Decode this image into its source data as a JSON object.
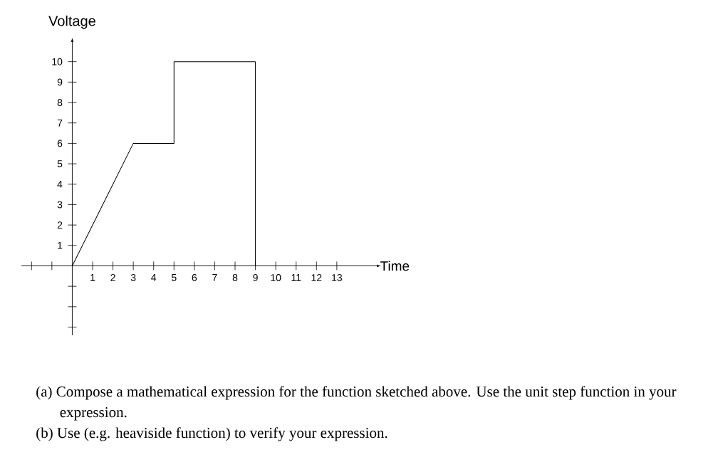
{
  "chart_data": {
    "type": "line",
    "xlabel": "Time",
    "ylabel": "Voltage",
    "x": [
      0,
      3,
      5,
      5,
      9,
      9
    ],
    "values": [
      0,
      6,
      6,
      10,
      10,
      0
    ],
    "color": "#000000",
    "xlim": [
      -2.5,
      15
    ],
    "ylim": [
      -3.4,
      11
    ],
    "xticks": [
      {
        "value": -2,
        "label": null
      },
      {
        "value": -1,
        "label": null
      },
      1,
      2,
      3,
      4,
      5,
      6,
      7,
      8,
      9,
      10,
      11,
      12,
      13
    ],
    "yticks": [
      {
        "value": -3,
        "label": null
      },
      {
        "value": -2,
        "label": null
      },
      {
        "value": -1,
        "label": null
      },
      1,
      2,
      3,
      4,
      5,
      6,
      7,
      8,
      9,
      10
    ],
    "annotations": [
      "(a) Compose a mathematical expression for the function sketched above.  Use the unit step function in your expression.",
      "(b) Use (e.g. heaviside function) to verify your expression."
    ]
  }
}
